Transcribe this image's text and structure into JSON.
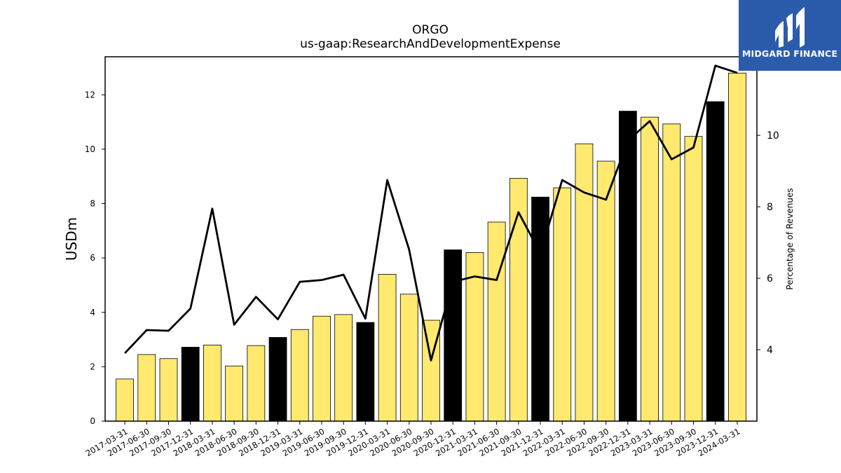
{
  "brand": {
    "name": "MIDGARD FINANCE",
    "color": "#2b5cab"
  },
  "chart_data": {
    "type": "bar",
    "title": "ORGO",
    "subtitle": "us-gaap:ResearchAndDevelopmentExpense",
    "ylabel": "USDm",
    "ylabel_right": "Percentage of Revenues",
    "ylim": [
      0,
      13.4
    ],
    "ylim_right": [
      2.0,
      12.2
    ],
    "yticks": [
      0,
      2,
      4,
      6,
      8,
      10,
      12
    ],
    "yticks_right": [
      4,
      6,
      8,
      10
    ],
    "grid": false,
    "colors": {
      "quarter": "#ffe96e",
      "year_end": "#000000",
      "line": "#000000"
    },
    "categories": [
      "2017-03-31",
      "2017-06-30",
      "2017-09-30",
      "2017-12-31",
      "2018-03-31",
      "2018-06-30",
      "2018-09-30",
      "2018-12-31",
      "2019-03-31",
      "2019-06-30",
      "2019-09-30",
      "2019-12-31",
      "2020-03-31",
      "2020-06-30",
      "2020-09-30",
      "2020-12-31",
      "2021-03-31",
      "2021-06-30",
      "2021-09-30",
      "2021-12-31",
      "2022-03-31",
      "2022-06-30",
      "2022-09-30",
      "2022-12-31",
      "2023-03-31",
      "2023-06-30",
      "2023-09-30",
      "2023-12-31",
      "2024-03-31"
    ],
    "series": [
      {
        "type": "bar",
        "axis": "left",
        "values": [
          1.55,
          2.45,
          2.3,
          2.72,
          2.8,
          2.03,
          2.78,
          3.08,
          3.37,
          3.86,
          3.92,
          3.63,
          5.4,
          4.67,
          3.71,
          6.3,
          6.2,
          7.32,
          8.93,
          8.24,
          8.58,
          10.2,
          9.56,
          11.4,
          11.18,
          10.93,
          10.47,
          11.75,
          12.8
        ],
        "highlight": [
          false,
          false,
          false,
          true,
          false,
          false,
          false,
          true,
          false,
          false,
          false,
          true,
          false,
          false,
          false,
          true,
          false,
          false,
          false,
          true,
          false,
          false,
          false,
          true,
          false,
          false,
          false,
          true,
          false
        ]
      },
      {
        "type": "line",
        "axis": "right",
        "values": [
          3.9,
          4.55,
          4.53,
          5.15,
          7.95,
          4.7,
          5.48,
          4.85,
          5.9,
          5.95,
          6.1,
          4.87,
          8.75,
          6.8,
          3.7,
          5.9,
          6.05,
          5.95,
          7.85,
          6.7,
          8.75,
          8.4,
          8.2,
          9.85,
          10.4,
          9.33,
          9.66,
          11.95,
          11.75
        ]
      }
    ]
  }
}
